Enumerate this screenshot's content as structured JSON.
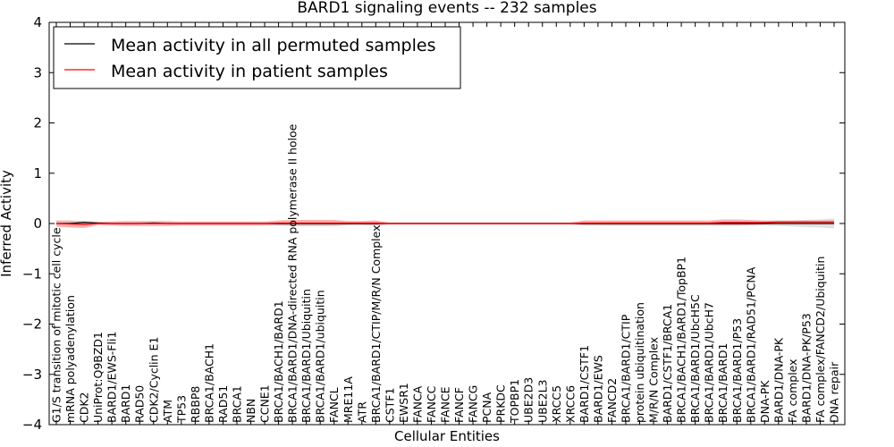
{
  "chart_data": {
    "type": "line",
    "title": "BARD1 signaling events -- 232 samples",
    "xlabel": "Cellular Entities",
    "ylabel": "Inferred Activity",
    "ylim": [
      -4,
      4
    ],
    "yticks": [
      4,
      3,
      2,
      1,
      0,
      -1,
      -2,
      -3,
      -4
    ],
    "ytick_labels": [
      "4",
      "3",
      "2",
      "1",
      "0",
      "−1",
      "−2",
      "−3",
      "−4"
    ],
    "legend_position": "top-left",
    "categories": [
      "G1/S transition of mitotic cell cycle",
      "mRNA polyadenylation",
      "CDK2",
      "UniProt:Q9BZD1",
      "BARD1/EWS-Fli1",
      "BARD1",
      "RAD50",
      "CDK2/Cyclin E1",
      "ATM",
      "TP53",
      "RBBP8",
      "BRCA1/BACH1",
      "RAD51",
      "BRCA1",
      "NBN",
      "CCNE1",
      "BRCA1/BACH1/BARD1",
      "BRCA1/BARD1/DNA-directed RNA polymerase II holoe",
      "BRCA1/BARD1/Ubiquitin",
      "BRCA1/BARD1/ubiquitin",
      "FANCL",
      "MRE11A",
      "ATR",
      "BRCA1/BARD1/CTIP/M/R/N Complex",
      "CSTF1",
      "EWSR1",
      "FANCA",
      "FANCC",
      "FANCE",
      "FANCF",
      "FANCG",
      "PCNA",
      "PRKDC",
      "TOPBP1",
      "UBE2D3",
      "UBE2L3",
      "XRCC5",
      "XRCC6",
      "BARD1/CSTF1",
      "BARD1/EWS",
      "FANCD2",
      "BRCA1/BARD1/CTIP",
      "protein ubiquitination",
      "M/R/N Complex",
      "BARD1/CSTF1/BRCA1",
      "BRCA1/BACH1/BARD1/TopBP1",
      "BRCA1/BARD1/UbcH5C",
      "BRCA1/BARD1/UbcH7",
      "BRCA1/BARD1",
      "BRCA1/BARD1/P53",
      "BRCA1/BARD1/RAD51/PCNA",
      "DNA-PK",
      "BARD1/DNA-PK",
      "FA complex",
      "BARD1/DNA-PK/P53",
      "FA complex/FANCD2/Ubiquitin",
      "DNA repair"
    ],
    "series": [
      {
        "name": "Mean activity in all permuted samples",
        "color": "#000000",
        "band_color": "#bbbbbb",
        "values": [
          0,
          0,
          0.02,
          0.01,
          0,
          0,
          0,
          0.01,
          0,
          0,
          0,
          0,
          0,
          0,
          0,
          0,
          0,
          0,
          0,
          0,
          0,
          0,
          0,
          0,
          0,
          0,
          0,
          0,
          0,
          0,
          0,
          0,
          0,
          0,
          0,
          0,
          0,
          0,
          0,
          0,
          0,
          0,
          0,
          0,
          0,
          0,
          0,
          0,
          0,
          0,
          0,
          0,
          0,
          0,
          0,
          0,
          0
        ],
        "band": [
          0.01,
          0.01,
          0.02,
          0.02,
          0.02,
          0.02,
          0.02,
          0.02,
          0.02,
          0.02,
          0.02,
          0.02,
          0.02,
          0.02,
          0.02,
          0.02,
          0.02,
          0.02,
          0.02,
          0.02,
          0.02,
          0.02,
          0.02,
          0.02,
          0.02,
          0.02,
          0.02,
          0.02,
          0.02,
          0.02,
          0.02,
          0.02,
          0.02,
          0.02,
          0.02,
          0.02,
          0.02,
          0.02,
          0.02,
          0.02,
          0.03,
          0.03,
          0.03,
          0.03,
          0.03,
          0.03,
          0.03,
          0.03,
          0.04,
          0.04,
          0.04,
          0.04,
          0.05,
          0.06,
          0.07,
          0.08,
          0.1
        ]
      },
      {
        "name": "Mean activity in patient samples",
        "color": "#ff0000",
        "band_color": "#f08080",
        "values": [
          0,
          -0.01,
          -0.02,
          0,
          0,
          0,
          0,
          0,
          0,
          0,
          0,
          0,
          0,
          0,
          0,
          0,
          0.01,
          0.01,
          0.01,
          0.01,
          0.01,
          0.01,
          0.01,
          0.01,
          0,
          0,
          0,
          0,
          0,
          0,
          0,
          0,
          0,
          0,
          0,
          0,
          0,
          0,
          0.01,
          0.01,
          0.01,
          0.01,
          0.01,
          0.01,
          0.01,
          0.01,
          0.01,
          0.01,
          0.02,
          0.02,
          0.02,
          0.02,
          0.03,
          0.03,
          0.03,
          0.03,
          0.03
        ],
        "band": [
          0.06,
          0.07,
          0.07,
          0.03,
          0.04,
          0.05,
          0.05,
          0.05,
          0.05,
          0.04,
          0.04,
          0.04,
          0.04,
          0.04,
          0.04,
          0.04,
          0.05,
          0.06,
          0.06,
          0.06,
          0.06,
          0.04,
          0.04,
          0.05,
          0.02,
          0.02,
          0.02,
          0.02,
          0.02,
          0.02,
          0.02,
          0.02,
          0.02,
          0.02,
          0.02,
          0.02,
          0.02,
          0.02,
          0.05,
          0.05,
          0.05,
          0.05,
          0.05,
          0.05,
          0.05,
          0.05,
          0.05,
          0.05,
          0.06,
          0.06,
          0.05,
          0.04,
          0.03,
          0.03,
          0.03,
          0.03,
          0.03
        ]
      }
    ]
  }
}
